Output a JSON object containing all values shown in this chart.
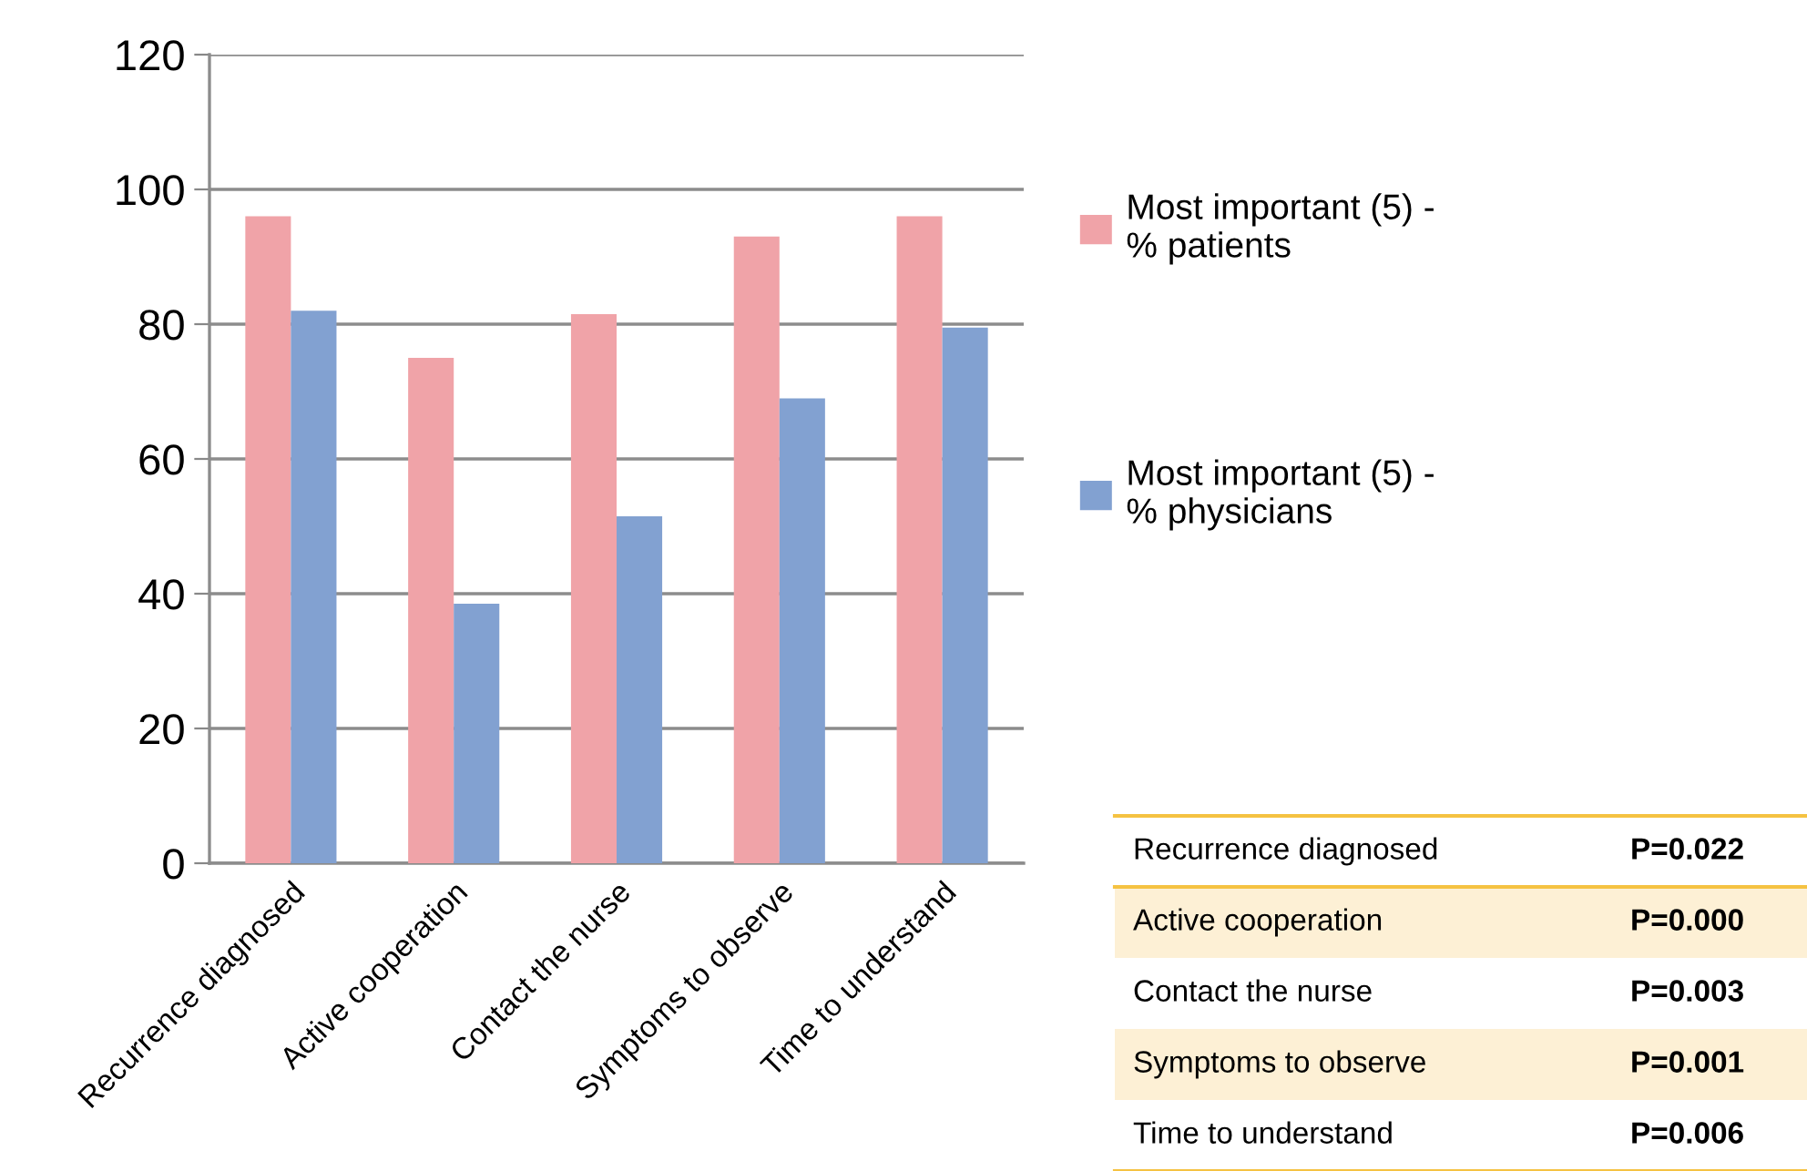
{
  "chart_data": {
    "type": "bar",
    "categories": [
      "Recurrence diagnosed",
      "Active cooperation",
      "Contact the nurse",
      "Symptoms to observe",
      "Time to understand"
    ],
    "series": [
      {
        "name": "Most important (5) -\n% patients",
        "color": "#f0a3a8",
        "values": [
          96,
          75,
          81.5,
          93,
          96
        ]
      },
      {
        "name": "Most important (5) -\n% physicians",
        "color": "#82a1d1",
        "values": [
          82,
          38.5,
          51.5,
          69,
          79.5
        ]
      }
    ],
    "ylim": [
      0,
      120
    ],
    "yticks": [
      0,
      20,
      40,
      60,
      80,
      100,
      120
    ],
    "grid": "y",
    "legend": "right",
    "annotations": [
      "Recurrence diagnosed",
      "P=0.022",
      "Active cooperation",
      "P=0.000",
      "Contact the nurse",
      "P=0.003",
      "Symptoms to observe",
      "P=0.001",
      "Time to understand",
      "P=0.006"
    ]
  }
}
